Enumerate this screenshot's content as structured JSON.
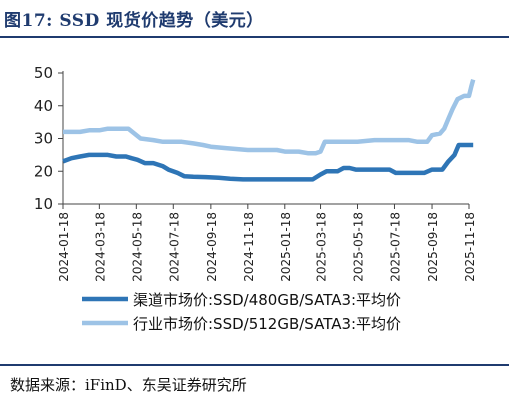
{
  "header": {
    "figure_title": "图17: SSD 现货价趋势（美元）"
  },
  "footer": {
    "source": "数据来源：iFinD、东吴证券研究所"
  },
  "chart_data": {
    "type": "line",
    "title": "",
    "xlabel": "",
    "ylabel": "",
    "ylim": [
      10,
      50
    ],
    "yticks": [
      10,
      20,
      30,
      40,
      50
    ],
    "grid": false,
    "legend_position": "bottom",
    "x_tick_labels": [
      "2024-01-18",
      "2024-03-18",
      "2024-05-18",
      "2024-07-18",
      "2024-09-18",
      "2024-11-18",
      "2025-01-18",
      "2025-03-18",
      "2025-05-18",
      "2025-07-18",
      "2025-09-18",
      "2025-11-18"
    ],
    "x_start": "2024-01-18",
    "x_end": "2025-11-18",
    "series": [
      {
        "name": "渠道市场价:SSD/480GB/SATA3:平均价",
        "color": "#2e75b6",
        "points": [
          [
            "2024-01-18",
            23
          ],
          [
            "2024-02-01",
            24
          ],
          [
            "2024-02-15",
            24.5
          ],
          [
            "2024-03-01",
            25
          ],
          [
            "2024-03-18",
            25
          ],
          [
            "2024-04-01",
            25
          ],
          [
            "2024-04-15",
            24.5
          ],
          [
            "2024-05-01",
            24.5
          ],
          [
            "2024-05-10",
            24
          ],
          [
            "2024-05-20",
            23.5
          ],
          [
            "2024-06-01",
            22.5
          ],
          [
            "2024-06-15",
            22.5
          ],
          [
            "2024-07-01",
            21.5
          ],
          [
            "2024-07-10",
            20.5
          ],
          [
            "2024-07-25",
            19.5
          ],
          [
            "2024-08-05",
            18.5
          ],
          [
            "2024-08-20",
            18.3
          ],
          [
            "2024-09-10",
            18.2
          ],
          [
            "2024-10-01",
            18
          ],
          [
            "2024-10-20",
            17.7
          ],
          [
            "2024-11-10",
            17.5
          ],
          [
            "2024-12-15",
            17.5
          ],
          [
            "2025-01-18",
            17.5
          ],
          [
            "2025-02-15",
            17.5
          ],
          [
            "2025-03-05",
            17.5
          ],
          [
            "2025-03-18",
            19
          ],
          [
            "2025-03-28",
            20
          ],
          [
            "2025-04-15",
            20
          ],
          [
            "2025-04-25",
            21
          ],
          [
            "2025-05-05",
            21
          ],
          [
            "2025-05-15",
            20.5
          ],
          [
            "2025-06-15",
            20.5
          ],
          [
            "2025-07-10",
            20.5
          ],
          [
            "2025-07-20",
            19.5
          ],
          [
            "2025-08-15",
            19.5
          ],
          [
            "2025-09-05",
            19.5
          ],
          [
            "2025-09-18",
            20.5
          ],
          [
            "2025-10-05",
            20.5
          ],
          [
            "2025-10-15",
            23
          ],
          [
            "2025-10-25",
            25
          ],
          [
            "2025-11-01",
            28
          ],
          [
            "2025-11-25",
            28
          ]
        ]
      },
      {
        "name": "行业市场价:SSD/512GB/SATA3:平均价",
        "color": "#9dc3e6",
        "points": [
          [
            "2024-01-18",
            32
          ],
          [
            "2024-02-15",
            32
          ],
          [
            "2024-03-01",
            32.5
          ],
          [
            "2024-03-18",
            32.5
          ],
          [
            "2024-04-01",
            33
          ],
          [
            "2024-04-20",
            33
          ],
          [
            "2024-05-05",
            33
          ],
          [
            "2024-05-15",
            31.5
          ],
          [
            "2024-05-25",
            30
          ],
          [
            "2024-06-15",
            29.5
          ],
          [
            "2024-07-01",
            29
          ],
          [
            "2024-08-01",
            29
          ],
          [
            "2024-08-20",
            28.5
          ],
          [
            "2024-09-05",
            28
          ],
          [
            "2024-09-18",
            27.5
          ],
          [
            "2024-10-15",
            27
          ],
          [
            "2024-11-18",
            26.5
          ],
          [
            "2024-12-15",
            26.5
          ],
          [
            "2025-01-05",
            26.5
          ],
          [
            "2025-01-18",
            26
          ],
          [
            "2025-02-10",
            26
          ],
          [
            "2025-02-25",
            25.5
          ],
          [
            "2025-03-10",
            25.5
          ],
          [
            "2025-03-18",
            26
          ],
          [
            "2025-03-25",
            29
          ],
          [
            "2025-04-15",
            29
          ],
          [
            "2025-05-18",
            29
          ],
          [
            "2025-06-15",
            29.5
          ],
          [
            "2025-07-18",
            29.5
          ],
          [
            "2025-08-10",
            29.5
          ],
          [
            "2025-08-25",
            29
          ],
          [
            "2025-09-10",
            29
          ],
          [
            "2025-09-18",
            31
          ],
          [
            "2025-10-01",
            31.5
          ],
          [
            "2025-10-08",
            33
          ],
          [
            "2025-10-15",
            36
          ],
          [
            "2025-10-22",
            39
          ],
          [
            "2025-10-30",
            42
          ],
          [
            "2025-11-10",
            43
          ],
          [
            "2025-11-18",
            43
          ],
          [
            "2025-11-22",
            46
          ],
          [
            "2025-11-25",
            48
          ]
        ]
      }
    ]
  }
}
